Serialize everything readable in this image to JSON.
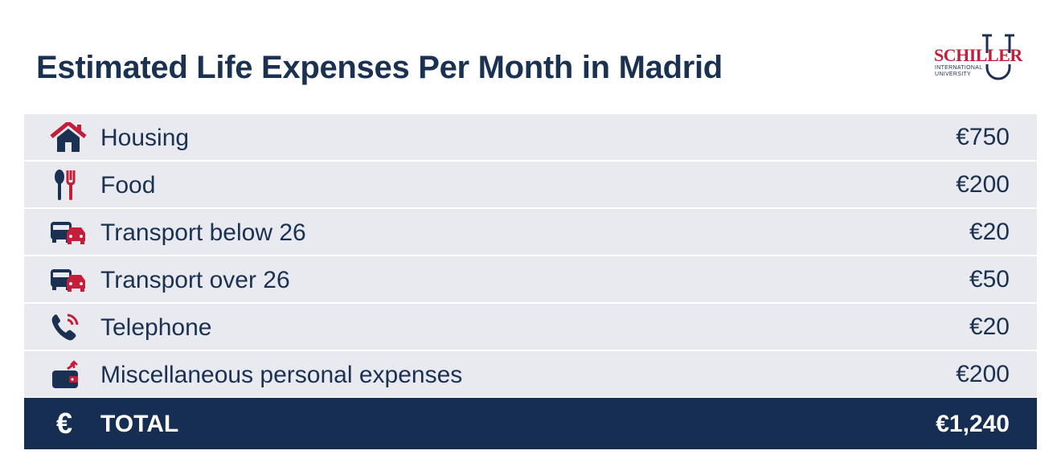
{
  "title": "Estimated Life Expenses Per Month in Madrid",
  "logo": {
    "name": "SCHILLER",
    "sub_line1": "INTERNATIONAL",
    "sub_line2": "UNIVERSITY"
  },
  "colors": {
    "navy": "#1b3151",
    "red": "#c41e3a",
    "row_bg": "#e8eaef",
    "total_bg": "#152e52"
  },
  "rows": [
    {
      "icon": "house-icon",
      "label": "Housing",
      "value": "€750"
    },
    {
      "icon": "utensils-icon",
      "label": "Food",
      "value": "€200"
    },
    {
      "icon": "bus-car-icon",
      "label": "Transport below 26",
      "value": "€20"
    },
    {
      "icon": "bus-car-icon",
      "label": "Transport over 26",
      "value": "€50"
    },
    {
      "icon": "phone-icon",
      "label": "Telephone",
      "value": "€20"
    },
    {
      "icon": "wallet-icon",
      "label": "Miscellaneous personal expenses",
      "value": "€200"
    }
  ],
  "total": {
    "symbol": "€",
    "label": "TOTAL",
    "value": "€1,240"
  }
}
